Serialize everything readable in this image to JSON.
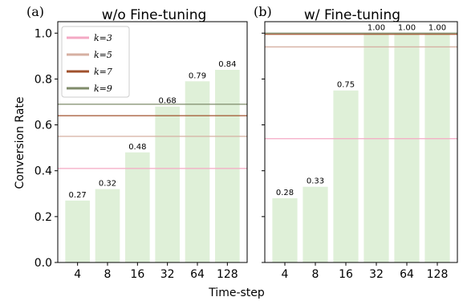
{
  "xlabel": "Time-step",
  "ylabel": "Conversion Rate",
  "chart_data": [
    {
      "type": "bar",
      "panel_label": "(a)",
      "title": "w/o Fine-tuning",
      "categories": [
        "4",
        "8",
        "16",
        "32",
        "64",
        "128"
      ],
      "values": [
        0.27,
        0.32,
        0.48,
        0.68,
        0.79,
        0.84
      ],
      "data_labels": [
        "0.27",
        "0.32",
        "0.48",
        "0.68",
        "0.79",
        "0.84"
      ],
      "ylim": [
        0,
        1.05
      ],
      "yticks": [
        "0.0",
        "0.2",
        "0.4",
        "0.6",
        "0.8",
        "1.0"
      ],
      "bar_color": "#dff0d8",
      "reference_lines": [
        {
          "name": "k=3",
          "value": 0.41,
          "color": "#f4a9c4"
        },
        {
          "name": "k=5",
          "value": 0.55,
          "color": "#d6b0a2"
        },
        {
          "name": "k=7",
          "value": 0.64,
          "color": "#a0522d"
        },
        {
          "name": "k=9",
          "value": 0.69,
          "color": "#7f8b6a"
        }
      ],
      "legend": "top-left"
    },
    {
      "type": "bar",
      "panel_label": "(b)",
      "title": "w/ Fine-tuning",
      "categories": [
        "4",
        "8",
        "16",
        "32",
        "64",
        "128"
      ],
      "values": [
        0.28,
        0.33,
        0.75,
        1.0,
        1.0,
        1.0
      ],
      "data_labels": [
        "0.28",
        "0.33",
        "0.75",
        "1.00",
        "1.00",
        "1.00"
      ],
      "ylim": [
        0,
        1.05
      ],
      "bar_color": "#dff0d8",
      "reference_lines": [
        {
          "name": "k=3",
          "value": 0.54,
          "color": "#f4a9c4"
        },
        {
          "name": "k=5",
          "value": 0.94,
          "color": "#d6b0a2"
        },
        {
          "name": "k=7",
          "value": 0.995,
          "color": "#a0522d"
        },
        {
          "name": "k=9",
          "value": 1.0,
          "color": "#7f8b6a"
        }
      ]
    }
  ]
}
